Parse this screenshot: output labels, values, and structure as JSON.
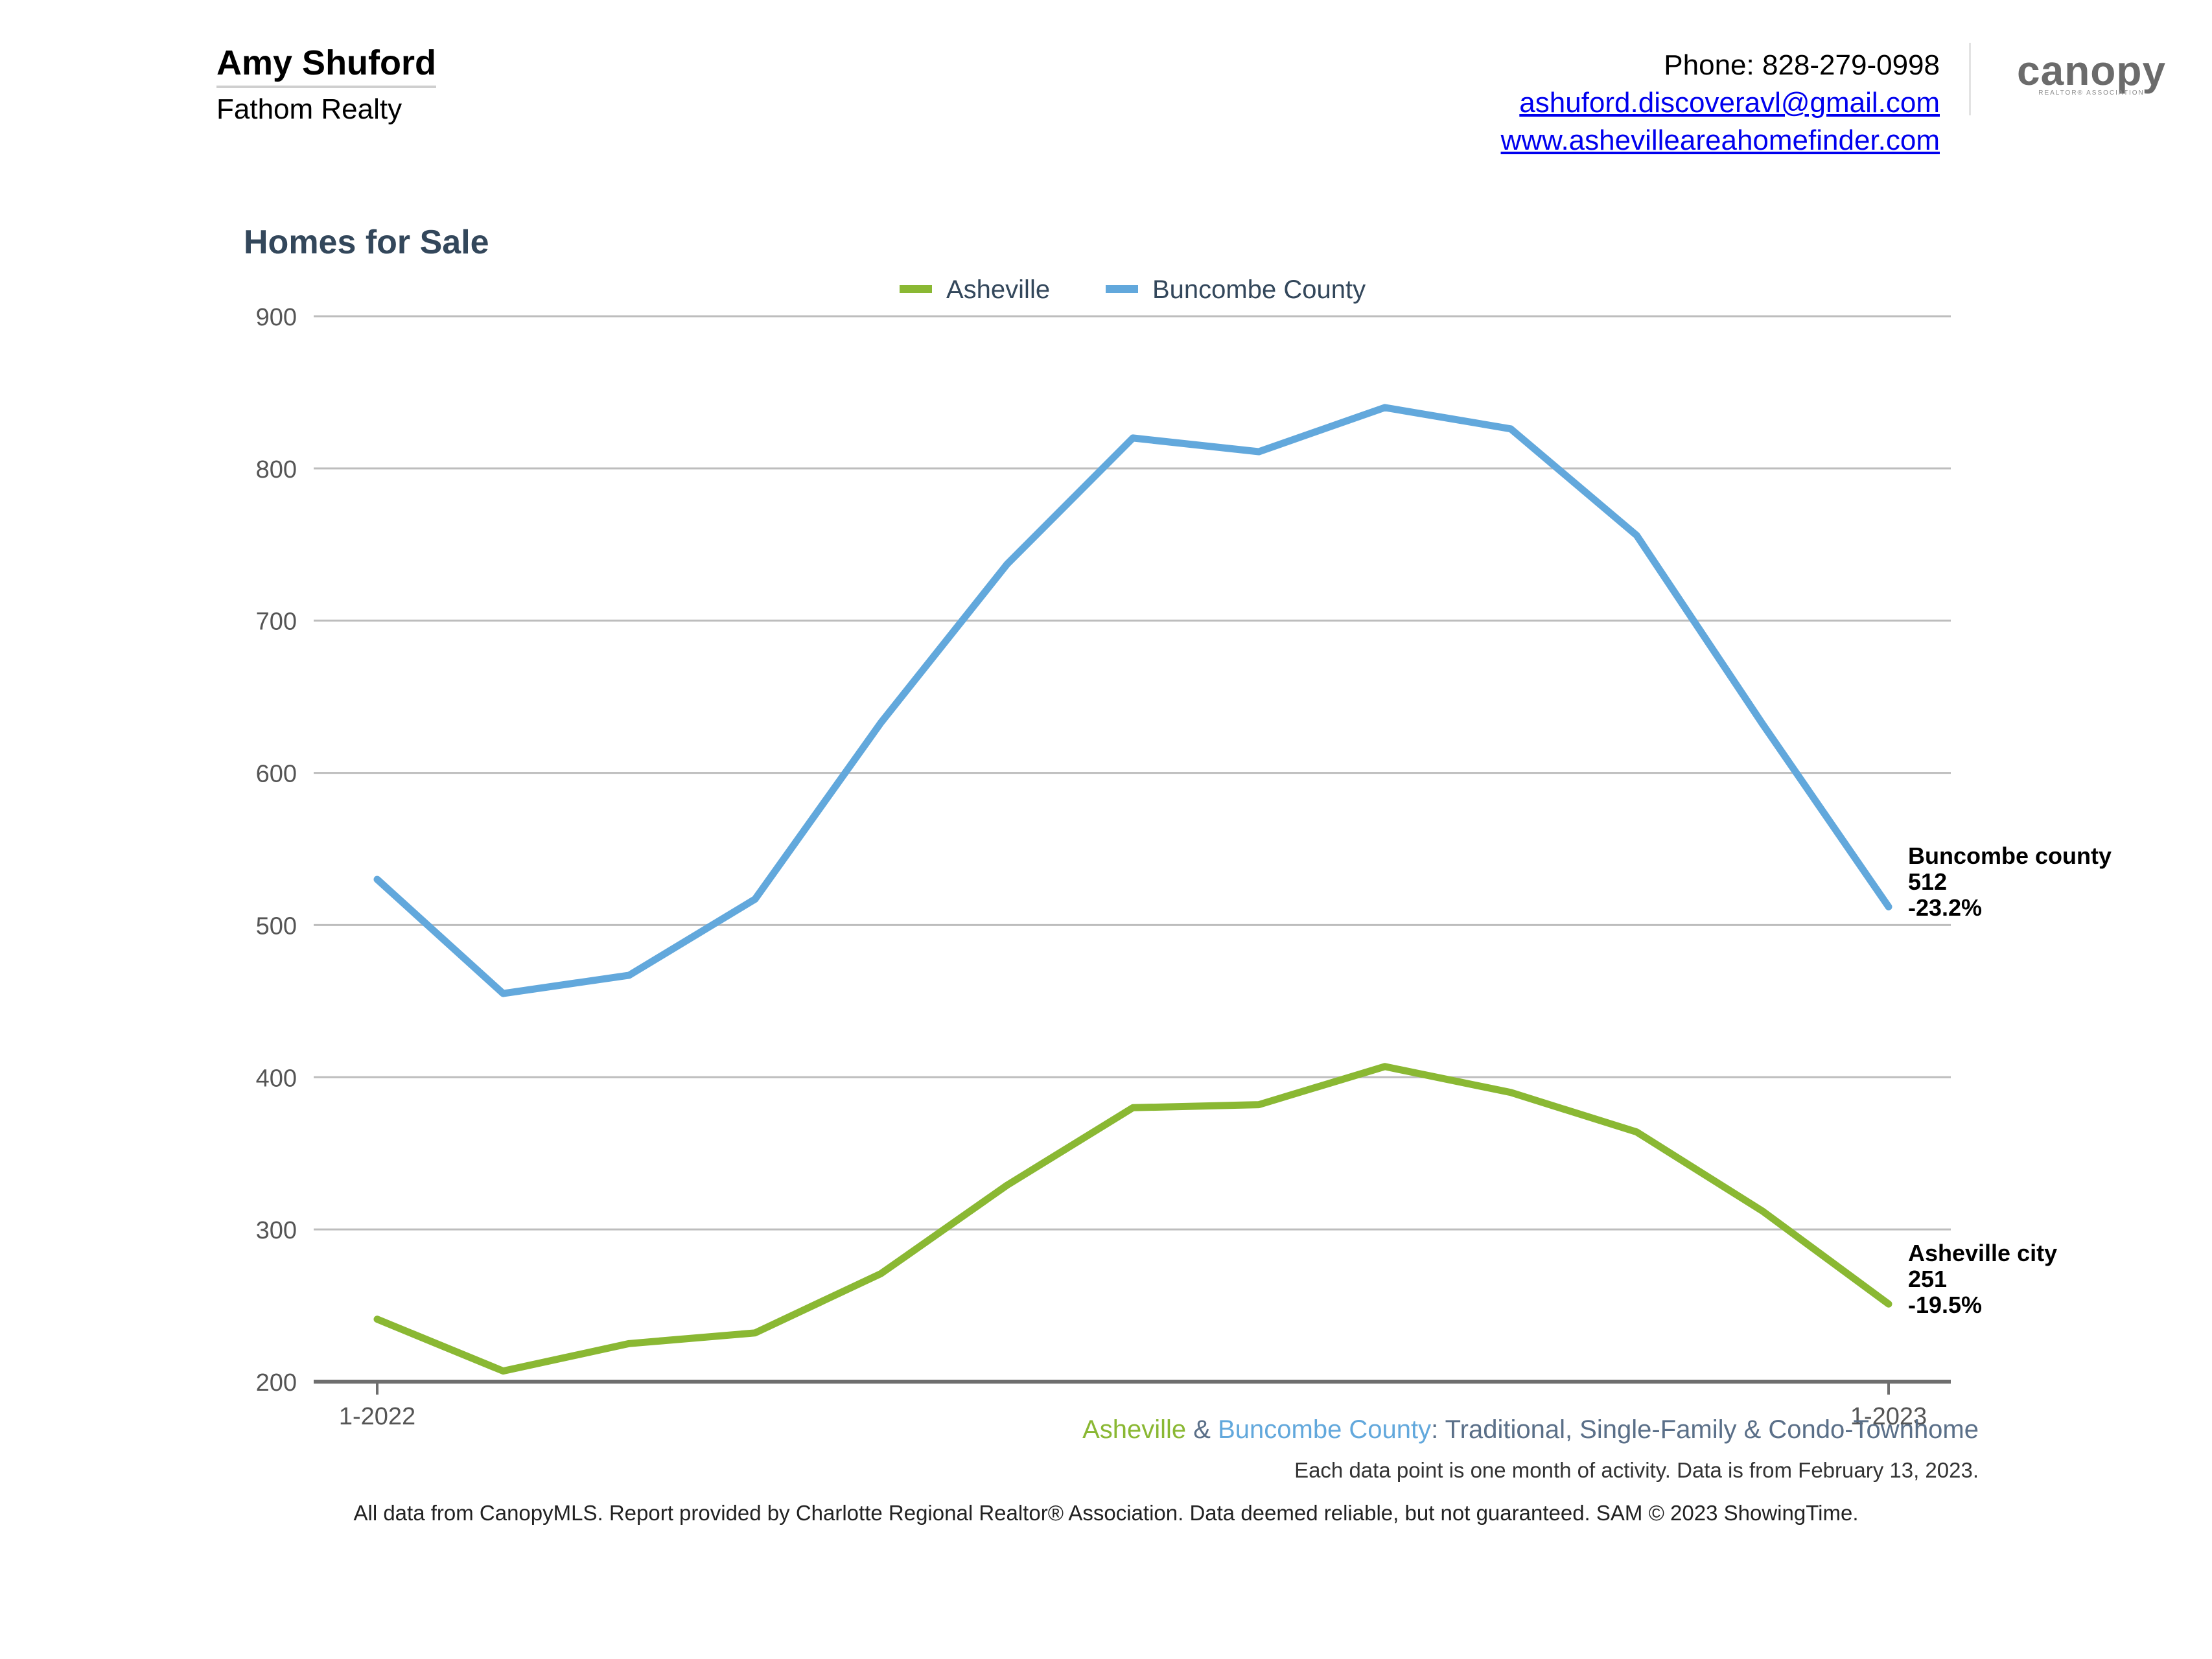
{
  "header": {
    "agent_name": "Amy Shuford",
    "company": "Fathom Realty",
    "phone": "Phone: 828-279-0998",
    "email": "ashuford.discoveravl@gmail.com",
    "website": "www.ashevilleareahomefinder.com",
    "logo_text": "canopy",
    "logo_subtext": "REALTOR® ASSOCIATION"
  },
  "chart_data": {
    "type": "line",
    "title": "Homes for Sale",
    "x": [
      "1-2022",
      "2-2022",
      "3-2022",
      "4-2022",
      "5-2022",
      "6-2022",
      "7-2022",
      "8-2022",
      "9-2022",
      "10-2022",
      "11-2022",
      "12-2022",
      "1-2023"
    ],
    "x_tick_labels": [
      "1-2022",
      "1-2023"
    ],
    "ylim": [
      200,
      900
    ],
    "y_ticks": [
      200,
      300,
      400,
      500,
      600,
      700,
      800,
      900
    ],
    "grid": true,
    "legend_position": "top-center",
    "series": [
      {
        "name": "Asheville",
        "color": "#8ab833",
        "values": [
          241,
          207,
          225,
          232,
          271,
          329,
          380,
          382,
          407,
          390,
          364,
          312,
          251
        ]
      },
      {
        "name": "Buncombe County",
        "color": "#62a8dc",
        "values": [
          530,
          455,
          467,
          517,
          633,
          737,
          820,
          811,
          840,
          826,
          756,
          632,
          512
        ]
      }
    ],
    "annotations": [
      {
        "series": "Buncombe County",
        "lines": [
          "Buncombe county",
          "512",
          "-23.2%"
        ]
      },
      {
        "series": "Asheville",
        "lines": [
          "Asheville city",
          "251",
          "-19.5%"
        ]
      }
    ]
  },
  "footer": {
    "caption_asheville": "Asheville",
    "caption_amp": " & ",
    "caption_buncombe": "Buncombe County",
    "caption_rest": ": Traditional, Single-Family & Condo-Townhome",
    "note": "Each data point is one month of activity. Data is from February 13, 2023.",
    "disclaimer": "All data from CanopyMLS. Report provided by Charlotte Regional Realtor® Association. Data deemed reliable, but not guaranteed. SAM © 2023 ShowingTime."
  },
  "colors": {
    "asheville": "#8ab833",
    "buncombe": "#62a8dc",
    "title": "#33475b",
    "caption": "#5a6f88"
  }
}
